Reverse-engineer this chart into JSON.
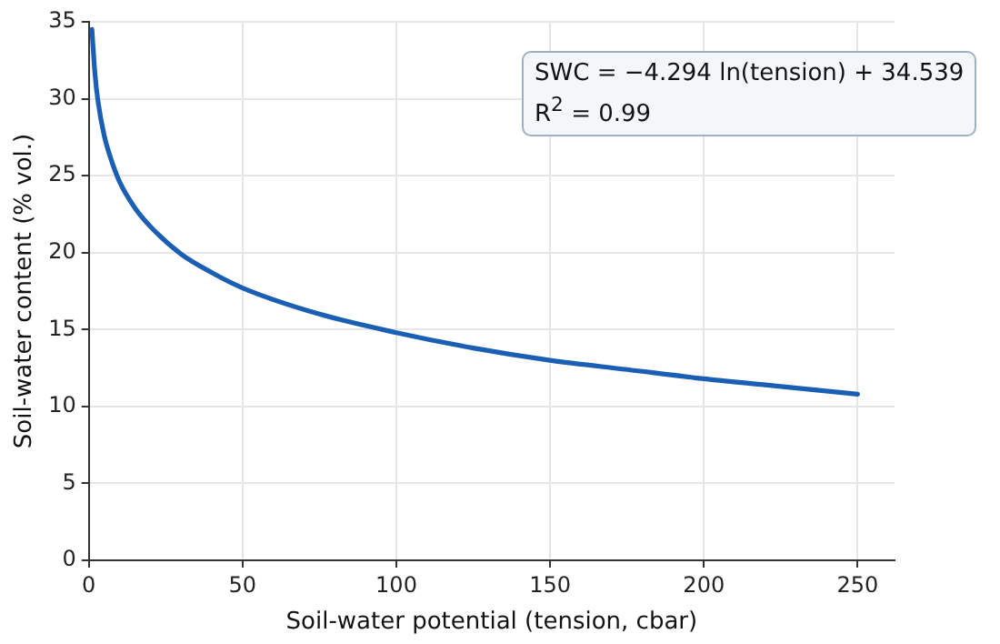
{
  "chart_data": {
    "type": "line",
    "xlabel": "Soil-water potential (tension, cbar)",
    "ylabel": "Soil-water content (% vol.)",
    "x": [
      1,
      2,
      3,
      5,
      7,
      10,
      15,
      20,
      30,
      40,
      50,
      75,
      100,
      125,
      150,
      175,
      200,
      225,
      250
    ],
    "series": [
      {
        "color": "#1a5fb4",
        "values": [
          34.5,
          31.6,
          29.8,
          27.6,
          26.2,
          24.6,
          22.9,
          21.7,
          19.9,
          18.7,
          17.7,
          16.0,
          14.8,
          13.8,
          13.0,
          12.4,
          11.8,
          11.3,
          10.8
        ]
      }
    ],
    "xlim": [
      0,
      262
    ],
    "xticks": [
      0,
      50,
      100,
      150,
      200,
      250
    ],
    "ylim": [
      0,
      35
    ],
    "yticks": [
      0,
      5,
      10,
      15,
      20,
      25,
      30,
      35
    ],
    "grid": true,
    "marker": "none",
    "line_style": "solid",
    "annotations": [
      "SWC = −4.294 ln(tension) + 34.539",
      "R$^{2}$ = 0.99"
    ]
  }
}
